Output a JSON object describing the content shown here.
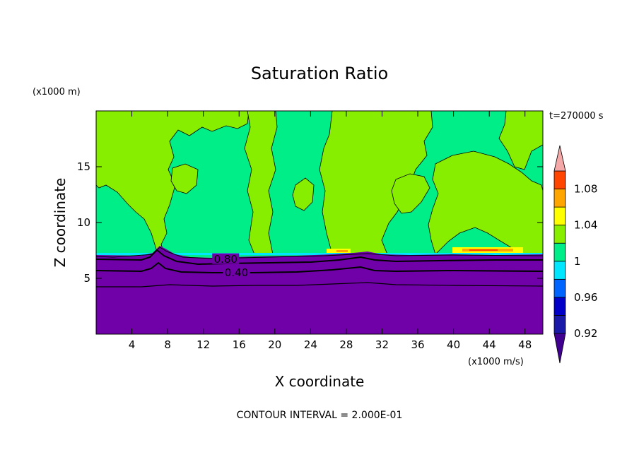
{
  "chart_data": {
    "type": "heatmap",
    "title": "Saturation Ratio",
    "xlabel": "X coordinate",
    "ylabel": "Z coordinate",
    "x_units": "(x1000 m/s)",
    "y_units": "(x1000 m)",
    "time_label": "t=270000 s",
    "footer": "CONTOUR INTERVAL = 2.000E-01",
    "xlim": [
      0,
      50
    ],
    "ylim": [
      0,
      20
    ],
    "x_ticks": [
      4,
      8,
      12,
      16,
      20,
      24,
      28,
      32,
      36,
      40,
      44,
      48
    ],
    "y_ticks": [
      5,
      10,
      15
    ],
    "colorbar": {
      "levels": [
        0.92,
        0.94,
        0.96,
        0.98,
        1.0,
        1.02,
        1.04,
        1.06,
        1.08,
        1.1
      ],
      "labels": [
        "0.92",
        "0.96",
        "1",
        "1.04",
        "1.08"
      ],
      "label_values": [
        0.92,
        0.96,
        1.0,
        1.04,
        1.08
      ],
      "colors": [
        "#400090",
        "#1a1aa8",
        "#0000c8",
        "#0064ff",
        "#00e6ff",
        "#00ee88",
        "#88ee00",
        "#ffff00",
        "#ffa500",
        "#ff4500",
        "#ff2a2a",
        "#f4a8a8"
      ]
    },
    "contour_labels": [
      {
        "text": "0.80",
        "x": 14.5,
        "y": 6.7
      },
      {
        "text": "0.40",
        "x": 15.7,
        "y": 5.5
      }
    ],
    "regions": {
      "subsaturated_top_km": 7.1,
      "contour_levels_km": [
        6.6,
        5.6,
        4.2
      ]
    }
  }
}
